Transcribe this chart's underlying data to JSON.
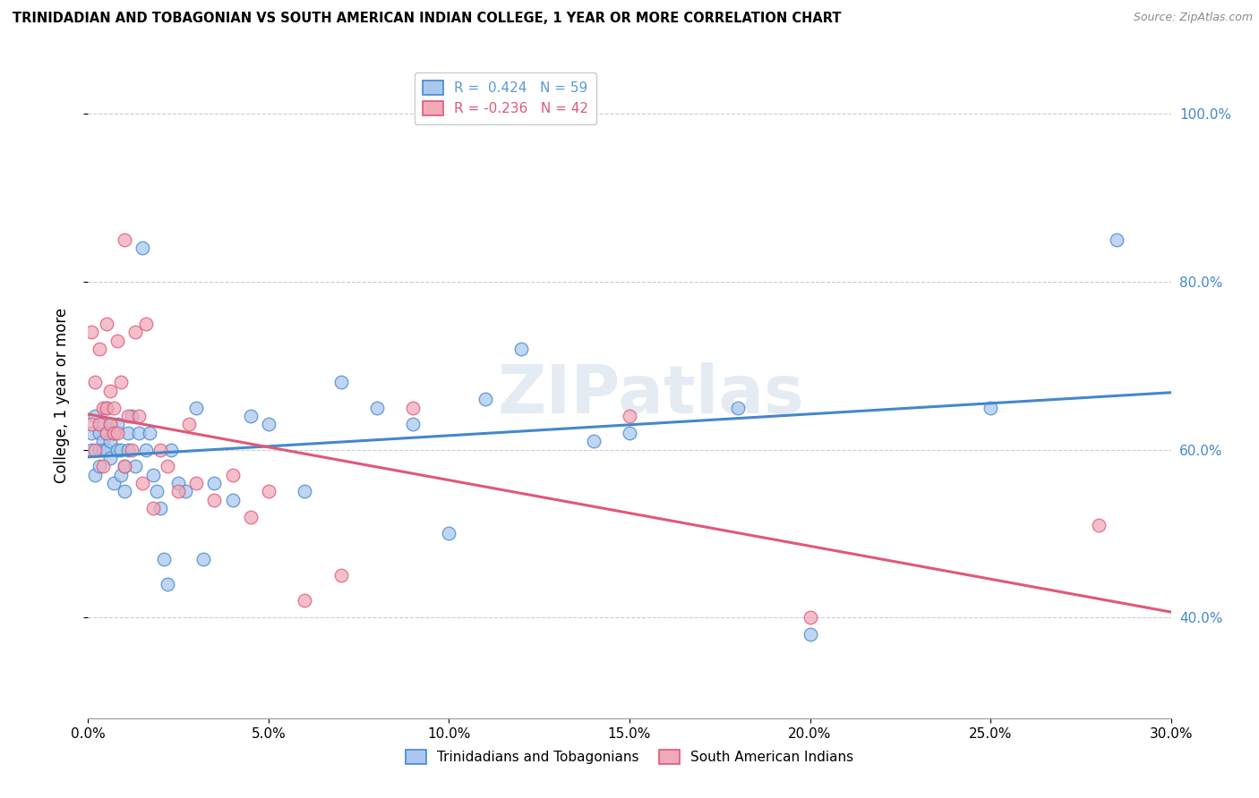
{
  "title": "TRINIDADIAN AND TOBAGONIAN VS SOUTH AMERICAN INDIAN COLLEGE, 1 YEAR OR MORE CORRELATION CHART",
  "source": "Source: ZipAtlas.com",
  "ylabel": "College, 1 year or more",
  "legend_entries": [
    {
      "label": "R =  0.424   N = 59",
      "color": "#5b9bd5"
    },
    {
      "label": "R = -0.236   N = 42",
      "color": "#e05878"
    }
  ],
  "legend_labels": [
    "Trinidadians and Tobagonians",
    "South American Indians"
  ],
  "xlim": [
    0.0,
    0.3
  ],
  "ylim": [
    0.28,
    1.05
  ],
  "x_ticks": [
    0.0,
    0.05,
    0.1,
    0.15,
    0.2,
    0.25,
    0.3
  ],
  "y_ticks": [
    0.4,
    0.6,
    0.8,
    1.0
  ],
  "blue_scatter_x": [
    0.001,
    0.001,
    0.002,
    0.002,
    0.003,
    0.003,
    0.003,
    0.004,
    0.004,
    0.004,
    0.005,
    0.005,
    0.005,
    0.006,
    0.006,
    0.006,
    0.007,
    0.007,
    0.008,
    0.008,
    0.009,
    0.009,
    0.01,
    0.01,
    0.011,
    0.011,
    0.012,
    0.013,
    0.014,
    0.015,
    0.016,
    0.017,
    0.018,
    0.019,
    0.02,
    0.021,
    0.022,
    0.023,
    0.025,
    0.027,
    0.03,
    0.032,
    0.035,
    0.04,
    0.045,
    0.05,
    0.06,
    0.07,
    0.08,
    0.09,
    0.1,
    0.11,
    0.12,
    0.14,
    0.15,
    0.18,
    0.2,
    0.25,
    0.285
  ],
  "blue_scatter_y": [
    0.62,
    0.6,
    0.64,
    0.57,
    0.62,
    0.6,
    0.58,
    0.63,
    0.61,
    0.6,
    0.65,
    0.62,
    0.6,
    0.63,
    0.61,
    0.59,
    0.62,
    0.56,
    0.63,
    0.6,
    0.57,
    0.6,
    0.55,
    0.58,
    0.62,
    0.6,
    0.64,
    0.58,
    0.62,
    0.84,
    0.6,
    0.62,
    0.57,
    0.55,
    0.53,
    0.47,
    0.44,
    0.6,
    0.56,
    0.55,
    0.65,
    0.47,
    0.56,
    0.54,
    0.64,
    0.63,
    0.55,
    0.68,
    0.65,
    0.63,
    0.5,
    0.66,
    0.72,
    0.61,
    0.62,
    0.65,
    0.38,
    0.65,
    0.85
  ],
  "pink_scatter_x": [
    0.001,
    0.001,
    0.002,
    0.002,
    0.003,
    0.003,
    0.004,
    0.004,
    0.005,
    0.005,
    0.005,
    0.006,
    0.006,
    0.007,
    0.007,
    0.008,
    0.008,
    0.009,
    0.01,
    0.01,
    0.011,
    0.012,
    0.013,
    0.014,
    0.015,
    0.016,
    0.018,
    0.02,
    0.022,
    0.025,
    0.028,
    0.03,
    0.035,
    0.04,
    0.045,
    0.05,
    0.06,
    0.07,
    0.09,
    0.15,
    0.2,
    0.28
  ],
  "pink_scatter_y": [
    0.74,
    0.63,
    0.68,
    0.6,
    0.72,
    0.63,
    0.65,
    0.58,
    0.75,
    0.65,
    0.62,
    0.63,
    0.67,
    0.62,
    0.65,
    0.73,
    0.62,
    0.68,
    0.85,
    0.58,
    0.64,
    0.6,
    0.74,
    0.64,
    0.56,
    0.75,
    0.53,
    0.6,
    0.58,
    0.55,
    0.63,
    0.56,
    0.54,
    0.57,
    0.52,
    0.55,
    0.42,
    0.45,
    0.65,
    0.64,
    0.4,
    0.51
  ],
  "blue_line_color": "#4488cc",
  "pink_line_color": "#e05878",
  "blue_scatter_facecolor": "#aac8ee",
  "pink_scatter_facecolor": "#f0aaba",
  "watermark_text": "ZIPatlas",
  "grid_color": "#cccccc",
  "grid_linestyle": "--"
}
